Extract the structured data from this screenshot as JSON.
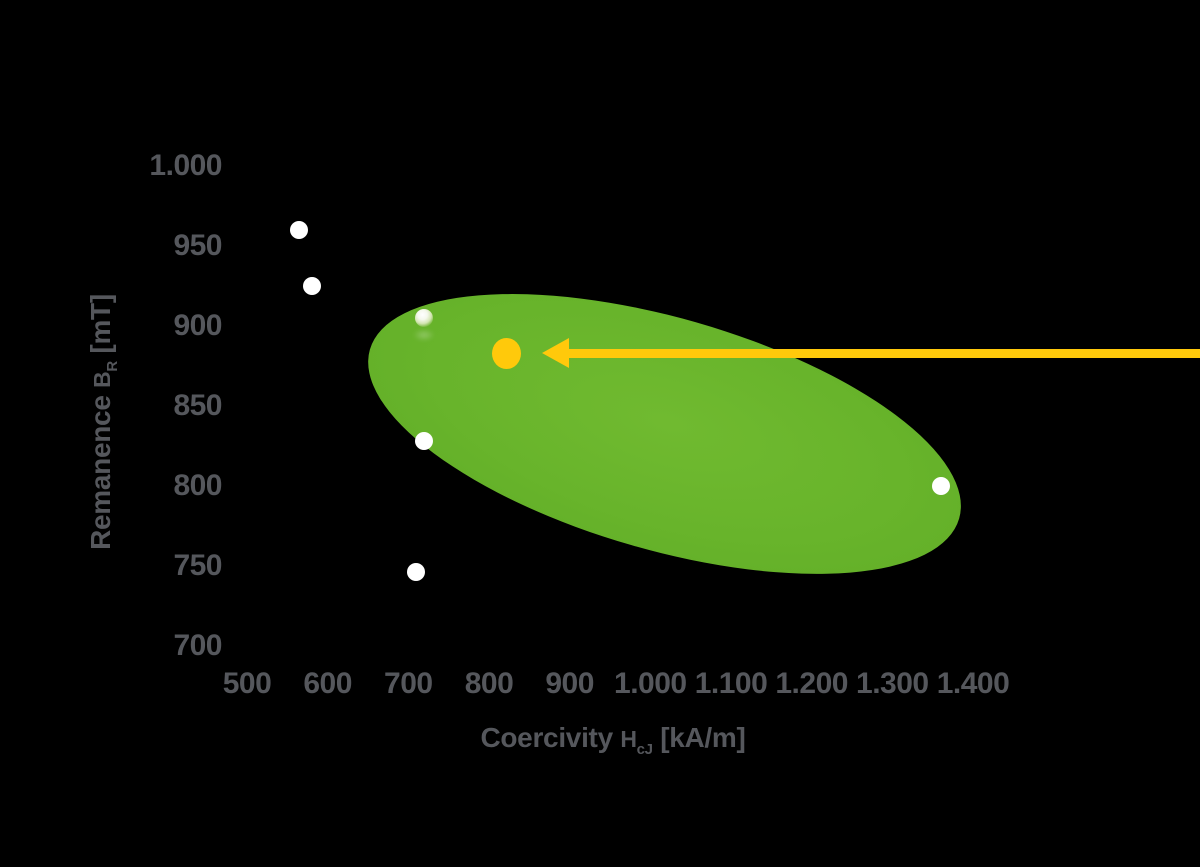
{
  "background_color": "#000000",
  "colors": {
    "axis_text": "#55575C",
    "region_green": "#68B42B",
    "point_white": "#FFFFFF",
    "accent_yellow": "#FFC90B"
  },
  "chart_data": {
    "type": "scatter",
    "title": "",
    "xlabel": {
      "text_before_symbol": "Coercivity ",
      "symbol": "H",
      "symbol_subscript": "cJ",
      "text_after_symbol": " [kA/m]"
    },
    "ylabel": {
      "text_before_symbol": "Remanence ",
      "symbol": "B",
      "symbol_subscript": "R",
      "text_after_symbol": " [mT]"
    },
    "x_axis": {
      "min": 500,
      "max": 1400,
      "tick_values": [
        500,
        600,
        700,
        800,
        900,
        1000,
        1100,
        1200,
        1300,
        1400
      ],
      "tick_labels": [
        "500",
        "600",
        "700",
        "800",
        "900",
        "1.000",
        "1.100",
        "1.200",
        "1.300",
        "1.400"
      ]
    },
    "y_axis": {
      "min": 700,
      "max": 1000,
      "tick_values": [
        700,
        750,
        800,
        850,
        900,
        950,
        1000
      ],
      "tick_labels": [
        "700",
        "750",
        "800",
        "850",
        "900",
        "950",
        "1.000"
      ]
    },
    "grid": false,
    "legend": false,
    "points": [
      {
        "hcj": 565,
        "br": 960,
        "style": "solid-white"
      },
      {
        "hcj": 580,
        "br": 925,
        "style": "solid-white"
      },
      {
        "hcj": 720,
        "br": 905,
        "style": "glossy-white"
      },
      {
        "hcj": 720,
        "br": 828,
        "style": "solid-white"
      },
      {
        "hcj": 710,
        "br": 746,
        "style": "solid-white"
      },
      {
        "hcj": 1360,
        "br": 800,
        "style": "solid-white"
      }
    ],
    "highlight_point": {
      "hcj": 822,
      "br": 883,
      "color": "#FFC90B"
    },
    "region": {
      "shape": "ellipse",
      "color": "#68B42B",
      "hcj_range": [
        650,
        1385
      ],
      "br_range": [
        745,
        920
      ],
      "rotation_deg": 16
    },
    "annotation_arrow": {
      "direction": "left",
      "from": "right-edge",
      "points_to": "highlight_point",
      "color": "#FFC90B"
    }
  }
}
